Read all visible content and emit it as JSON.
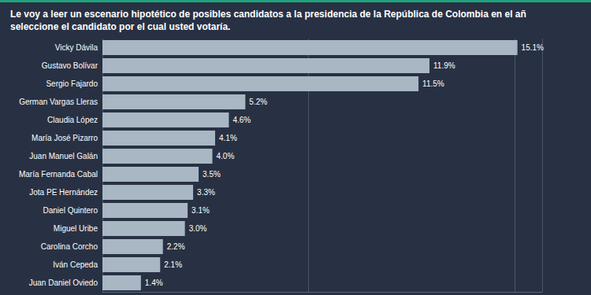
{
  "chart_data": {
    "type": "bar",
    "orientation": "horizontal",
    "title": "Le voy a leer un escenario hipotético de posibles candidatos a la presidencia de la República de Colombia en el añ seleccione el candidato por el cual usted votaría.",
    "categories": [
      "Vicky Dávila",
      "Gustavo Bolívar",
      "Sergio Fajardo",
      "German Vargas Lleras",
      "Claudia López",
      "María José Pizarro",
      "Juan Manuel Galán",
      "María Fernanda Cabal",
      "Jota PE Hernández",
      "Daniel Quintero",
      "Miguel Uribe",
      "Carolina Corcho",
      "Iván Cepeda",
      "Juan Daniel Oviedo"
    ],
    "values": [
      15.1,
      11.9,
      11.5,
      5.2,
      4.6,
      4.1,
      4.0,
      3.5,
      3.3,
      3.1,
      3.0,
      2.2,
      2.1,
      1.4
    ],
    "value_labels": [
      "15.1%",
      "11.9%",
      "11.5%",
      "5.2%",
      "4.6%",
      "4.1%",
      "4.0%",
      "3.5%",
      "3.3%",
      "3.1%",
      "3.0%",
      "2.2%",
      "2.1%",
      "1.4%"
    ],
    "color": "#a9b7c5",
    "xlim": [
      0,
      16
    ],
    "xticks": [
      0,
      7.5,
      15
    ],
    "grid": true,
    "data_labels": true,
    "tick_labels": "y"
  }
}
